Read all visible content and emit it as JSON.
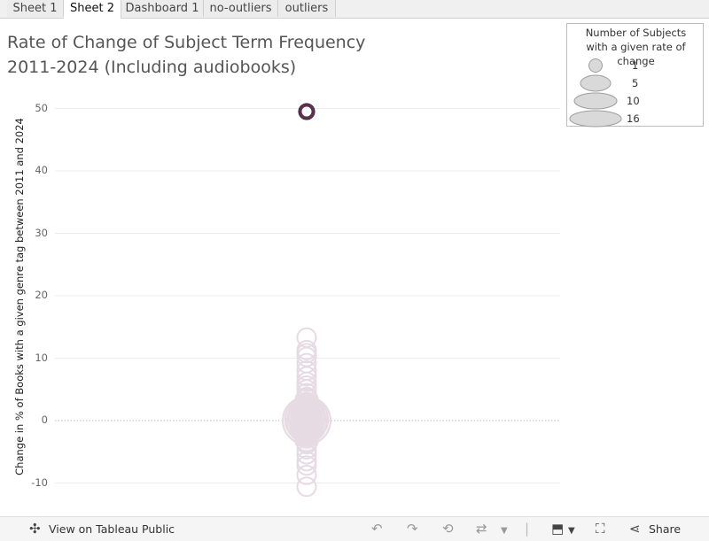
{
  "tabs": [
    "Sheet 1",
    "Sheet 2",
    "Dashboard 1",
    "no-outliers",
    "outliers"
  ],
  "active_tab": 1,
  "title_lines": [
    "Rate of Change of Subject Term Frequency",
    "2011-2024 (Including audiobooks)"
  ],
  "legend": {
    "title_lines": [
      "Number of Subjects",
      "with a given rate of change"
    ],
    "entries": [
      "1",
      "5",
      "10",
      "16"
    ]
  },
  "footer": {
    "view_label": "View on Tableau Public",
    "share_label": "Share"
  },
  "colors": {
    "point_faint": "#e6dbe3",
    "point_highlight": "#5e2f4f",
    "legend_fill": "#d9d9d9",
    "legend_stroke": "#9e9e9e"
  },
  "chart_data": {
    "type": "scatter",
    "title": "Rate of Change of Subject Term Frequency 2011-2024 (Including audiobooks)",
    "xlabel": "",
    "ylabel": "Change in % of Books with a given genre tag between 2011 and 2024",
    "ylim": [
      -12,
      52
    ],
    "yticks": [
      -10,
      0,
      10,
      20,
      30,
      40,
      50
    ],
    "grid": true,
    "legend_position": "top-right",
    "size_legend": {
      "title": "Number of Subjects with a given rate of change",
      "values": [
        1,
        5,
        10,
        16
      ]
    },
    "highlighted": [
      {
        "y": 49.5,
        "count": 1
      }
    ],
    "points": [
      {
        "y": 13.3,
        "count": 1
      },
      {
        "y": 11.3,
        "count": 1
      },
      {
        "y": 10.8,
        "count": 1
      },
      {
        "y": 10.2,
        "count": 1
      },
      {
        "y": 9.2,
        "count": 1
      },
      {
        "y": 8.0,
        "count": 1
      },
      {
        "y": 7.1,
        "count": 1
      },
      {
        "y": 6.2,
        "count": 1
      },
      {
        "y": 5.6,
        "count": 1
      },
      {
        "y": 5.0,
        "count": 1
      },
      {
        "y": 4.4,
        "count": 1
      },
      {
        "y": 3.8,
        "count": 1
      },
      {
        "y": 3.2,
        "count": 2
      },
      {
        "y": 2.6,
        "count": 2
      },
      {
        "y": 2.1,
        "count": 3
      },
      {
        "y": 1.6,
        "count": 4
      },
      {
        "y": 1.1,
        "count": 5
      },
      {
        "y": 0.6,
        "count": 8
      },
      {
        "y": 0.2,
        "count": 12
      },
      {
        "y": 0.0,
        "count": 16
      },
      {
        "y": -0.3,
        "count": 10
      },
      {
        "y": -0.8,
        "count": 6
      },
      {
        "y": -1.3,
        "count": 4
      },
      {
        "y": -1.9,
        "count": 3
      },
      {
        "y": -2.5,
        "count": 2
      },
      {
        "y": -3.1,
        "count": 2
      },
      {
        "y": -3.8,
        "count": 1
      },
      {
        "y": -4.6,
        "count": 1
      },
      {
        "y": -5.4,
        "count": 1
      },
      {
        "y": -6.5,
        "count": 1
      },
      {
        "y": -7.2,
        "count": 1
      },
      {
        "y": -8.7,
        "count": 1
      },
      {
        "y": -10.6,
        "count": 1
      }
    ]
  }
}
